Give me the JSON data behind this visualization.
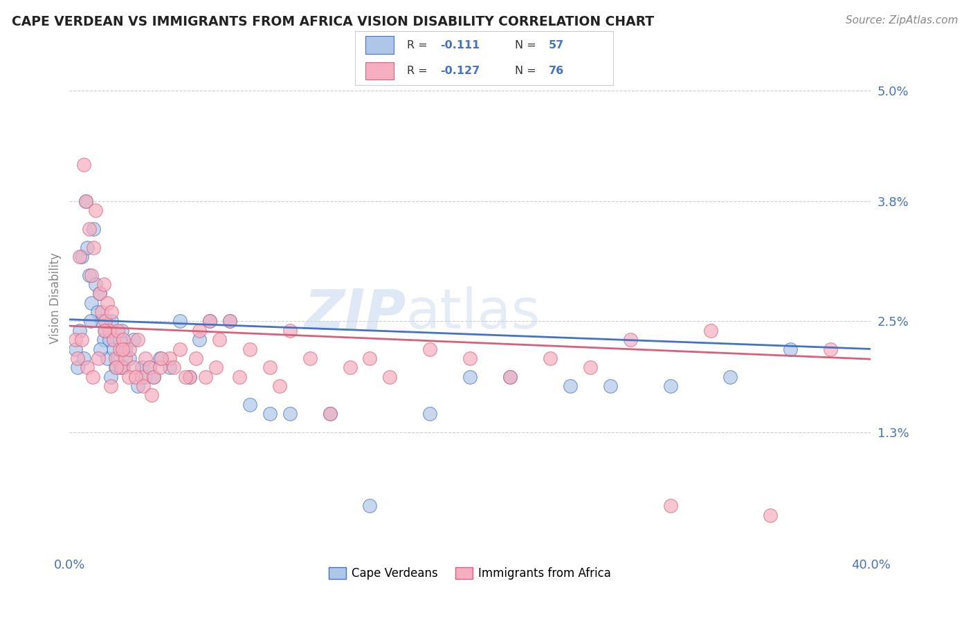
{
  "title": "CAPE VERDEAN VS IMMIGRANTS FROM AFRICA VISION DISABILITY CORRELATION CHART",
  "source": "Source: ZipAtlas.com",
  "ylabel": "Vision Disability",
  "ytick_vals": [
    0.0,
    1.3,
    2.5,
    3.8,
    5.0
  ],
  "ytick_labels": [
    "",
    "1.3%",
    "2.5%",
    "3.8%",
    "5.0%"
  ],
  "xlim": [
    0.0,
    40.0
  ],
  "ylim": [
    0.0,
    5.5
  ],
  "color_blue": "#aec6e8",
  "color_pink": "#f5afc0",
  "line_blue": "#4472c4",
  "line_pink": "#d9607a",
  "text_color": "#4472c4",
  "grid_color": "#cccccc",
  "blue_x": [
    0.3,
    0.5,
    0.6,
    0.8,
    0.9,
    1.0,
    1.1,
    1.2,
    1.3,
    1.4,
    1.5,
    1.6,
    1.7,
    1.8,
    1.9,
    2.0,
    2.1,
    2.2,
    2.3,
    2.4,
    2.5,
    2.6,
    2.7,
    2.8,
    3.0,
    3.2,
    3.4,
    3.6,
    3.8,
    4.0,
    4.2,
    4.5,
    5.0,
    5.5,
    6.0,
    6.5,
    7.0,
    8.0,
    9.0,
    10.0,
    11.0,
    13.0,
    15.0,
    18.0,
    20.0,
    22.0,
    25.0,
    27.0,
    30.0,
    33.0,
    36.0,
    0.4,
    0.7,
    1.05,
    1.55,
    2.05,
    2.55
  ],
  "blue_y": [
    2.2,
    2.4,
    3.2,
    3.8,
    3.3,
    3.0,
    2.7,
    3.5,
    2.9,
    2.6,
    2.8,
    2.5,
    2.3,
    2.4,
    2.1,
    2.3,
    2.5,
    2.2,
    2.0,
    2.1,
    2.3,
    2.4,
    2.0,
    2.2,
    2.1,
    2.3,
    1.8,
    2.0,
    1.9,
    2.0,
    1.9,
    2.1,
    2.0,
    2.5,
    1.9,
    2.3,
    2.5,
    2.5,
    1.6,
    1.5,
    1.5,
    1.5,
    0.5,
    1.5,
    1.9,
    1.9,
    1.8,
    1.8,
    1.8,
    1.9,
    2.2,
    2.0,
    2.1,
    2.5,
    2.2,
    1.9,
    2.0
  ],
  "pink_x": [
    0.3,
    0.5,
    0.7,
    0.8,
    1.0,
    1.1,
    1.2,
    1.3,
    1.5,
    1.6,
    1.7,
    1.8,
    1.9,
    2.0,
    2.1,
    2.2,
    2.3,
    2.4,
    2.5,
    2.6,
    2.7,
    2.8,
    3.0,
    3.2,
    3.4,
    3.6,
    3.8,
    4.0,
    4.2,
    4.5,
    5.0,
    5.5,
    6.0,
    6.5,
    7.0,
    7.5,
    8.0,
    9.0,
    10.0,
    11.0,
    12.0,
    14.0,
    16.0,
    18.0,
    20.0,
    22.0,
    24.0,
    26.0,
    28.0,
    30.0,
    32.0,
    35.0,
    38.0,
    0.4,
    0.6,
    0.9,
    1.15,
    1.45,
    1.75,
    2.05,
    2.35,
    2.65,
    2.95,
    3.3,
    3.7,
    4.1,
    4.6,
    5.2,
    5.8,
    6.3,
    6.8,
    7.3,
    8.5,
    10.5,
    13.0,
    15.0
  ],
  "pink_y": [
    2.3,
    3.2,
    4.2,
    3.8,
    3.5,
    3.0,
    3.3,
    3.7,
    2.8,
    2.6,
    2.9,
    2.5,
    2.7,
    2.4,
    2.6,
    2.3,
    2.1,
    2.4,
    2.2,
    2.0,
    2.3,
    2.1,
    2.2,
    2.0,
    2.3,
    1.9,
    2.1,
    2.0,
    1.9,
    2.0,
    2.1,
    2.2,
    1.9,
    2.4,
    2.5,
    2.3,
    2.5,
    2.2,
    2.0,
    2.4,
    2.1,
    2.0,
    1.9,
    2.2,
    2.1,
    1.9,
    2.1,
    2.0,
    2.3,
    0.5,
    2.4,
    0.4,
    2.2,
    2.1,
    2.3,
    2.0,
    1.9,
    2.1,
    2.4,
    1.8,
    2.0,
    2.2,
    1.9,
    1.9,
    1.8,
    1.7,
    2.1,
    2.0,
    1.9,
    2.1,
    1.9,
    2.0,
    1.9,
    1.8,
    1.5,
    2.1
  ]
}
